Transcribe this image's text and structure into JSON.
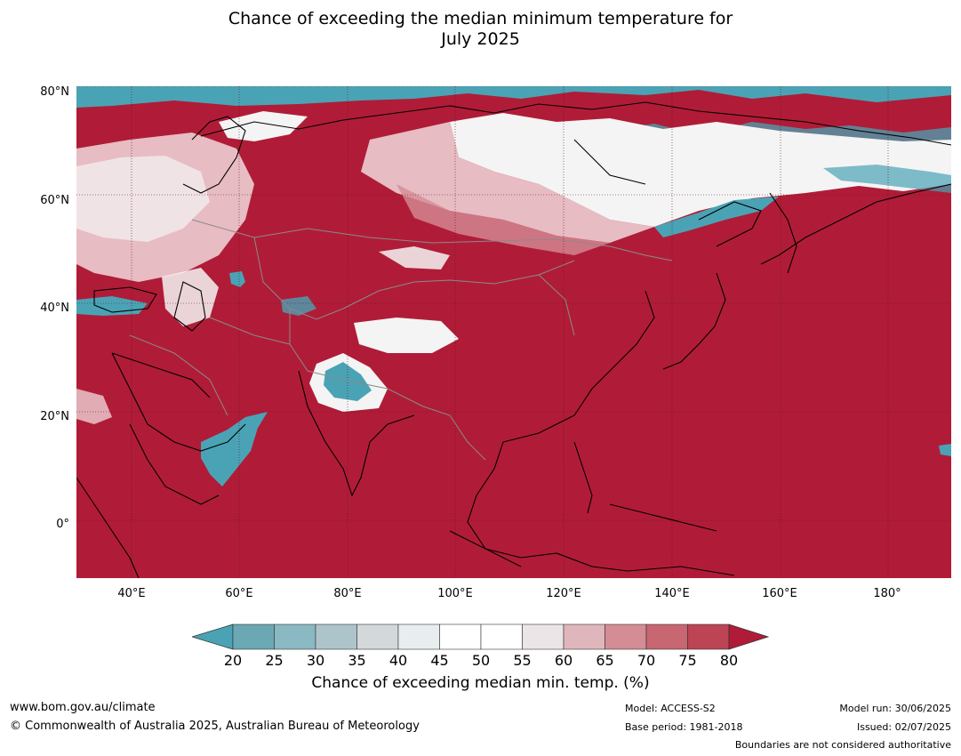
{
  "title_line1": "Chance of exceeding the median minimum temperature for",
  "title_line2": "July 2025",
  "lat_labels": [
    "80°N",
    "60°N",
    "40°N",
    "20°N",
    "0°"
  ],
  "lon_labels": [
    "40°E",
    "60°E",
    "80°E",
    "100°E",
    "120°E",
    "140°E",
    "160°E",
    "180°"
  ],
  "legend": {
    "ticks": [
      "20",
      "25",
      "30",
      "35",
      "40",
      "45",
      "50",
      "55",
      "60",
      "65",
      "70",
      "75",
      "80"
    ],
    "colors": [
      "#6ba8b4",
      "#8ab8c3",
      "#adc4ca",
      "#d3d9da",
      "#e8eef0",
      "#ffffff",
      "#ffffff",
      "#ebe5e7",
      "#dfb6bc",
      "#d48c95",
      "#c86672",
      "#bc4455"
    ],
    "under_color": "#4aa3b5",
    "over_color": "#b01c37",
    "label": "Chance of exceeding median min. temp. (%)"
  },
  "map_colors": {
    "base": "#b01c37",
    "teal": "#4aa3b5",
    "white": "#f4f4f4",
    "pink": "#d48c95",
    "light_pink": "#e7bcc2",
    "coast": "#000000",
    "border": "#8a8a8a"
  },
  "footer": {
    "website": "www.bom.gov.au/climate",
    "copyright": "© Commonwealth of Australia 2025, Australian Bureau of Meteorology",
    "model": "Model: ACCESS-S2",
    "base_period": "Base period: 1981-2018",
    "model_run": "Model run: 30/06/2025",
    "issued": "Issued: 02/07/2025",
    "disclaimer": "Boundaries are not considered authoritative"
  }
}
